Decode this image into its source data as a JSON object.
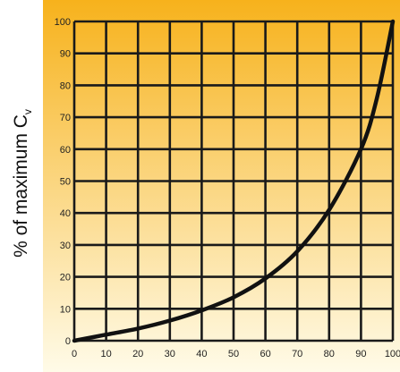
{
  "chart_data": {
    "type": "line",
    "title": "",
    "xlabel": "",
    "ylabel": "% of maximum C",
    "ylabel_subscript": "v",
    "xlim": [
      0,
      100
    ],
    "ylim": [
      0,
      100
    ],
    "x_ticks": [
      "0",
      "10",
      "20",
      "30",
      "40",
      "50",
      "60",
      "70",
      "80",
      "90",
      "100"
    ],
    "y_ticks": [
      "0",
      "10",
      "20",
      "30",
      "40",
      "50",
      "60",
      "70",
      "80",
      "90",
      "100"
    ],
    "grid": true,
    "series": [
      {
        "x": [
          0,
          10,
          20,
          30,
          40,
          50,
          60,
          70,
          80,
          90,
          95,
          100
        ],
        "y": [
          0,
          1.9,
          3.8,
          6.3,
          9.5,
          13.6,
          19.5,
          28,
          41,
          60,
          76,
          100
        ]
      }
    ],
    "colors": {
      "background_top": "#f7b21c",
      "background_bottom": "#fffbe8",
      "grid": "#1a1a1a",
      "line": "#111111"
    }
  }
}
